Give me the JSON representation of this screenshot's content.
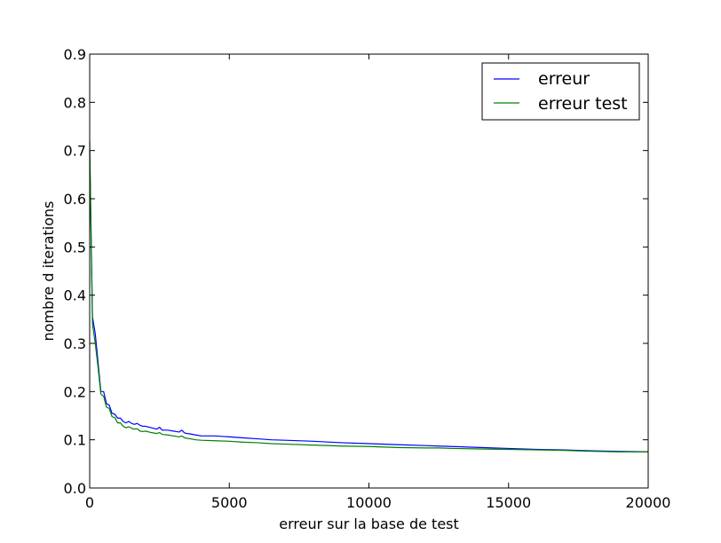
{
  "chart_data": {
    "type": "line",
    "title": "",
    "xlabel": "erreur sur la base de test",
    "ylabel": "nombre d iterations",
    "xlim": [
      0,
      20000
    ],
    "ylim": [
      0,
      0.9
    ],
    "xticks": [
      0,
      5000,
      10000,
      15000,
      20000
    ],
    "xtick_labels": [
      "0",
      "5000",
      "10000",
      "15000",
      "20000"
    ],
    "yticks": [
      0.0,
      0.1,
      0.2,
      0.3,
      0.4,
      0.5,
      0.6,
      0.7,
      0.8,
      0.9
    ],
    "ytick_labels": [
      "0.0",
      "0.1",
      "0.2",
      "0.3",
      "0.4",
      "0.5",
      "0.6",
      "0.7",
      "0.8",
      "0.9"
    ],
    "grid": false,
    "legend_position": "top-right",
    "series": [
      {
        "name": "erreur",
        "color": "#0000ff",
        "x": [
          0,
          100,
          200,
          300,
          400,
          500,
          600,
          700,
          800,
          900,
          1000,
          1100,
          1200,
          1300,
          1400,
          1500,
          1600,
          1700,
          1800,
          1900,
          2000,
          2200,
          2400,
          2500,
          2600,
          2800,
          3000,
          3200,
          3300,
          3400,
          3600,
          3800,
          4000,
          4500,
          5000,
          5500,
          6000,
          6500,
          7000,
          8000,
          9000,
          10000,
          11000,
          12000,
          12500,
          13000,
          14000,
          15000,
          16000,
          17000,
          18000,
          19000,
          20000
        ],
        "y": [
          0.7,
          0.355,
          0.32,
          0.26,
          0.2,
          0.2,
          0.175,
          0.172,
          0.155,
          0.153,
          0.145,
          0.145,
          0.138,
          0.135,
          0.138,
          0.134,
          0.132,
          0.134,
          0.13,
          0.128,
          0.128,
          0.125,
          0.122,
          0.126,
          0.12,
          0.12,
          0.118,
          0.116,
          0.12,
          0.114,
          0.112,
          0.11,
          0.108,
          0.108,
          0.106,
          0.104,
          0.102,
          0.1,
          0.099,
          0.097,
          0.094,
          0.092,
          0.09,
          0.088,
          0.087,
          0.086,
          0.084,
          0.082,
          0.08,
          0.079,
          0.077,
          0.076,
          0.075
        ]
      },
      {
        "name": "erreur test",
        "color": "#008000",
        "x": [
          0,
          100,
          200,
          300,
          400,
          500,
          600,
          700,
          800,
          900,
          1000,
          1100,
          1200,
          1300,
          1400,
          1500,
          1600,
          1700,
          1800,
          1900,
          2000,
          2200,
          2400,
          2500,
          2600,
          2800,
          3000,
          3200,
          3300,
          3400,
          3600,
          3800,
          4000,
          4500,
          5000,
          5500,
          6000,
          6500,
          7000,
          8000,
          9000,
          10000,
          11000,
          12000,
          12500,
          13000,
          14000,
          15000,
          16000,
          17000,
          18000,
          19000,
          20000
        ],
        "y": [
          0.72,
          0.34,
          0.3,
          0.25,
          0.195,
          0.19,
          0.168,
          0.165,
          0.148,
          0.146,
          0.135,
          0.135,
          0.128,
          0.125,
          0.127,
          0.124,
          0.122,
          0.123,
          0.118,
          0.117,
          0.118,
          0.115,
          0.113,
          0.115,
          0.111,
          0.11,
          0.108,
          0.106,
          0.108,
          0.104,
          0.102,
          0.1,
          0.099,
          0.098,
          0.097,
          0.095,
          0.094,
          0.092,
          0.091,
          0.089,
          0.087,
          0.086,
          0.084,
          0.083,
          0.083,
          0.082,
          0.081,
          0.08,
          0.079,
          0.078,
          0.076,
          0.075,
          0.075
        ]
      }
    ]
  }
}
